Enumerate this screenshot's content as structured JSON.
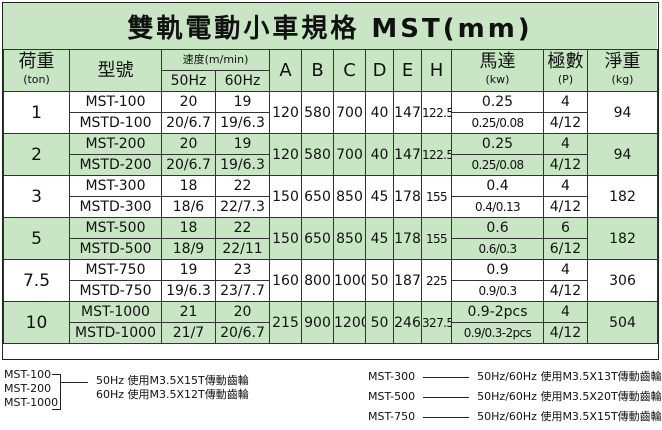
{
  "title": "雙軌電動小車規格 MST(mm)",
  "headers": {
    "load": "荷重",
    "load_unit": "(ton)",
    "model": "型號",
    "speed": "速度(m/min)",
    "hz50": "50Hz",
    "hz60": "60Hz",
    "a": "A",
    "b": "B",
    "c": "C",
    "d": "D",
    "e": "E",
    "h": "H",
    "motor": "馬達",
    "motor_unit": "(kw)",
    "poles": "極數",
    "poles_unit": "(P)",
    "weight": "淨重",
    "weight_unit": "(kg)"
  },
  "groups": [
    {
      "load": "1",
      "a": "120",
      "b": "580",
      "c": "700",
      "d": "40",
      "e": "147",
      "h": "122.5",
      "weight": "94",
      "rows": [
        {
          "model": "MST-100",
          "s50": "20",
          "s60": "19",
          "motor": "0.25",
          "poles": "4"
        },
        {
          "model": "MSTD-100",
          "s50": "20/6.7",
          "s60": "19/6.3",
          "motor": "0.25/0.08",
          "poles": "4/12"
        }
      ]
    },
    {
      "load": "2",
      "a": "120",
      "b": "580",
      "c": "700",
      "d": "40",
      "e": "147",
      "h": "122.5",
      "weight": "94",
      "rows": [
        {
          "model": "MST-200",
          "s50": "20",
          "s60": "19",
          "motor": "0.25",
          "poles": "4"
        },
        {
          "model": "MSTD-200",
          "s50": "20/6.7",
          "s60": "19/6.3",
          "motor": "0.25/0.08",
          "poles": "4/12"
        }
      ]
    },
    {
      "load": "3",
      "a": "150",
      "b": "650",
      "c": "850",
      "d": "45",
      "e": "178",
      "h": "155",
      "weight": "182",
      "rows": [
        {
          "model": "MST-300",
          "s50": "18",
          "s60": "22",
          "motor": "0.4",
          "poles": "4"
        },
        {
          "model": "MSTD-300",
          "s50": "18/6",
          "s60": "22/7.3",
          "motor": "0.4/0.13",
          "poles": "4/12"
        }
      ]
    },
    {
      "load": "5",
      "a": "150",
      "b": "650",
      "c": "850",
      "d": "45",
      "e": "178",
      "h": "155",
      "weight": "182",
      "rows": [
        {
          "model": "MST-500",
          "s50": "18",
          "s60": "22",
          "motor": "0.6",
          "poles": "6"
        },
        {
          "model": "MSTD-500",
          "s50": "18/9",
          "s60": "22/11",
          "motor": "0.6/0.3",
          "poles": "6/12"
        }
      ]
    },
    {
      "load": "7.5",
      "a": "160",
      "b": "800",
      "c": "1000",
      "d": "50",
      "e": "187",
      "h": "225",
      "weight": "306",
      "rows": [
        {
          "model": "MST-750",
          "s50": "19",
          "s60": "23",
          "motor": "0.9",
          "poles": "4"
        },
        {
          "model": "MSTD-750",
          "s50": "19/6.3",
          "s60": "23/7.7",
          "motor": "0.9/0.3",
          "poles": "4/12"
        }
      ]
    },
    {
      "load": "10",
      "a": "215",
      "b": "900",
      "c": "1200",
      "d": "50",
      "e": "246",
      "h": "327.5",
      "weight": "504",
      "rows": [
        {
          "model": "MST-1000",
          "s50": "21",
          "s60": "20",
          "motor": "0.9-2pcs",
          "poles": "4"
        },
        {
          "model": "MSTD-1000",
          "s50": "21/7",
          "s60": "20/6.7",
          "motor": "0.9/0.3-2pcs",
          "poles": "4/12"
        }
      ]
    }
  ],
  "notes": {
    "left_models": [
      "MST-100",
      "MST-200",
      "MST-1000"
    ],
    "left_lines": [
      "50Hz 使用M3.5X15T傳動齒輪",
      "60Hz 使用M3.5X12T傳動齒輪"
    ],
    "right": [
      {
        "model": "MST-300",
        "text": "50Hz/60Hz 使用M3.5X13T傳動齒輪"
      },
      {
        "model": "MST-500",
        "text": "50Hz/60Hz 使用M3.5X20T傳動齒輪"
      },
      {
        "model": "MST-750",
        "text": "50Hz/60Hz 使用M3.5X15T傳動齒輪"
      }
    ]
  }
}
